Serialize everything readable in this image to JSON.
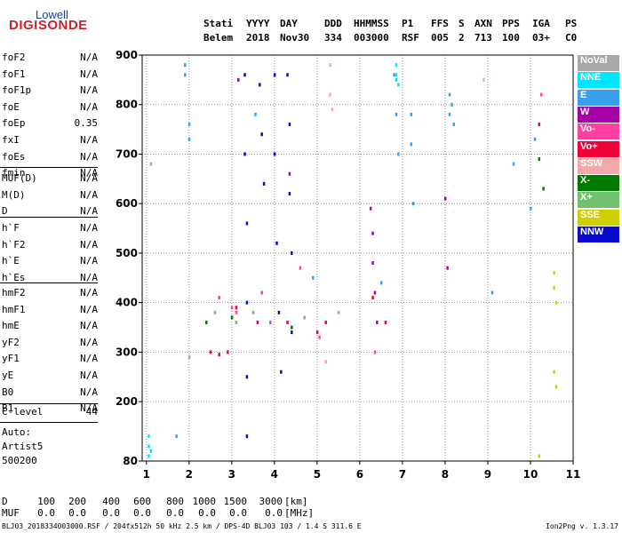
{
  "logo": {
    "top": "Lowell",
    "bottom": "DIGISONDE"
  },
  "header": {
    "labels": [
      "Stati",
      "YYYY",
      "DAY",
      "DDD",
      "HHMMSS",
      "P1",
      "FFS",
      "S",
      "AXN",
      "PPS",
      "IGA",
      "PS"
    ],
    "values": [
      "Belem",
      "2018",
      "Nov30",
      "334",
      "003000",
      "RSF",
      "005",
      "2",
      "713",
      "100",
      "03+",
      "C0"
    ]
  },
  "params": {
    "group1": [
      {
        "name": "foF2",
        "value": "N/A"
      },
      {
        "name": "foF1",
        "value": "N/A"
      },
      {
        "name": "foF1p",
        "value": "N/A"
      },
      {
        "name": "foE",
        "value": "N/A"
      },
      {
        "name": "foEp",
        "value": "0.35"
      },
      {
        "name": "fxI",
        "value": "N/A"
      },
      {
        "name": "foEs",
        "value": "N/A"
      },
      {
        "name": "fmin",
        "value": "N/A"
      }
    ],
    "group2": [
      {
        "name": "MUF(D)",
        "value": "N/A"
      },
      {
        "name": "M(D)",
        "value": "N/A"
      },
      {
        "name": "D",
        "value": "N/A"
      }
    ],
    "group3": [
      {
        "name": "h`F",
        "value": "N/A"
      },
      {
        "name": "h`F2",
        "value": "N/A"
      },
      {
        "name": "h`E",
        "value": "N/A"
      },
      {
        "name": "h`Es",
        "value": "N/A"
      }
    ],
    "group4": [
      {
        "name": "hmF2",
        "value": "N/A"
      },
      {
        "name": "hmF1",
        "value": "N/A"
      },
      {
        "name": "hmE",
        "value": "N/A"
      },
      {
        "name": "yF2",
        "value": "N/A"
      },
      {
        "name": "yF1",
        "value": "N/A"
      },
      {
        "name": "yE",
        "value": "N/A"
      },
      {
        "name": "B0",
        "value": "N/A"
      },
      {
        "name": "B1",
        "value": "N/A"
      }
    ],
    "clevel": {
      "name": "C-level",
      "value": "44"
    },
    "auto": [
      "Auto:",
      "Artist5",
      "500200"
    ]
  },
  "legend": [
    {
      "label": "NoVal",
      "color": "#a8a8a8"
    },
    {
      "label": "NNE",
      "color": "#00e6ff"
    },
    {
      "label": "E",
      "color": "#3aa0ee"
    },
    {
      "label": "W",
      "color": "#a800a8"
    },
    {
      "label": "Vo-",
      "color": "#ff40a0"
    },
    {
      "label": "Vo+",
      "color": "#ee0038"
    },
    {
      "label": "SSW",
      "color": "#f4a8a8"
    },
    {
      "label": "X-",
      "color": "#007a00"
    },
    {
      "label": "X+",
      "color": "#70c070"
    },
    {
      "label": "SSE",
      "color": "#d0d000"
    },
    {
      "label": "NNW",
      "color": "#0a0acc"
    }
  ],
  "bottom_table": {
    "row1_label": "D",
    "row1_values": [
      "100",
      "200",
      "400",
      "600",
      "800",
      "1000",
      "1500",
      "3000"
    ],
    "row1_unit": "[km]",
    "row2_label": "MUF",
    "row2_values": [
      "0.0",
      "0.0",
      "0.0",
      "0.0",
      "0.0",
      "0.0",
      "0.0",
      "0.0"
    ],
    "row2_unit": "[MHz]"
  },
  "footer": {
    "left": "BLJ03_2018334003000.RSF / 204fx512h 50 kHz 2.5 km / DPS-4D BLJ03 103 / 1.4 S 311.6 E",
    "right": "Ion2Png v. 1.3.17"
  },
  "chart_data": {
    "type": "scatter",
    "title": "",
    "xlabel": "",
    "ylabel": "",
    "xlim": [
      0.9,
      11.0
    ],
    "ylim": [
      80,
      900
    ],
    "x_ticks": [
      "1",
      "2",
      "3",
      "4",
      "5",
      "6",
      "7",
      "8",
      "9",
      "10",
      "11"
    ],
    "y_ticks": [
      "80",
      "200",
      "300",
      "400",
      "500",
      "600",
      "700",
      "800",
      "900"
    ],
    "grid": "dotted",
    "legend_position": "right",
    "series": [
      {
        "name": "NNE",
        "x": [
          1.05,
          1.05,
          1.05,
          1.1,
          6.85,
          6.85,
          6.85,
          6.9
        ],
        "y": [
          90,
          110,
          130,
          100,
          880,
          860,
          850,
          840
        ]
      },
      {
        "name": "E",
        "x": [
          1.9,
          1.9,
          2.0,
          2.0,
          3.55,
          6.8,
          6.85,
          6.9,
          7.2,
          7.2,
          7.25,
          8.1,
          8.1,
          8.15,
          8.2,
          9.1,
          9.6,
          10.0,
          10.1,
          1.7,
          4.9,
          6.5
        ],
        "y": [
          880,
          860,
          760,
          730,
          780,
          860,
          780,
          700,
          780,
          720,
          600,
          820,
          780,
          800,
          760,
          420,
          680,
          590,
          730,
          130,
          450,
          440
        ]
      },
      {
        "name": "W",
        "x": [
          3.15,
          4.35,
          6.25,
          6.3,
          6.3,
          6.35,
          6.4,
          8.0,
          8.05
        ],
        "y": [
          850,
          660,
          590,
          540,
          480,
          420,
          360,
          610,
          470
        ]
      },
      {
        "name": "NNW",
        "x": [
          3.3,
          3.3,
          3.35,
          3.35,
          3.35,
          3.35,
          3.65,
          3.7,
          3.75,
          4.0,
          4.0,
          4.05,
          4.1,
          4.15,
          4.3,
          4.35,
          4.35,
          4.4,
          4.4
        ],
        "y": [
          860,
          700,
          560,
          400,
          250,
          130,
          840,
          740,
          640,
          860,
          700,
          520,
          380,
          260,
          860,
          760,
          620,
          500,
          340
        ]
      },
      {
        "name": "Vo-",
        "x": [
          2.7,
          3.0,
          3.1,
          3.7,
          3.9,
          4.6,
          5.05,
          6.35,
          10.25
        ],
        "y": [
          410,
          390,
          380,
          420,
          360,
          470,
          330,
          300,
          820
        ]
      },
      {
        "name": "Vo+",
        "x": [
          2.5,
          2.7,
          2.9,
          3.1,
          3.6,
          4.3,
          5.0,
          5.2,
          6.3,
          6.6,
          10.2
        ],
        "y": [
          300,
          295,
          300,
          390,
          360,
          360,
          340,
          360,
          410,
          360,
          760
        ]
      },
      {
        "name": "SSW",
        "x": [
          5.3,
          5.3,
          5.35,
          5.2,
          8.9
        ],
        "y": [
          880,
          820,
          790,
          280,
          850
        ]
      },
      {
        "name": "X-",
        "x": [
          2.4,
          3.0,
          4.4,
          10.2,
          10.3
        ],
        "y": [
          360,
          370,
          350,
          690,
          630
        ]
      },
      {
        "name": "X+",
        "x": [
          2.6,
          3.1,
          3.5,
          4.7
        ],
        "y": [
          380,
          360,
          380,
          370
        ]
      },
      {
        "name": "SSE",
        "x": [
          10.55,
          10.55,
          10.6,
          10.55,
          10.6,
          10.2
        ],
        "y": [
          460,
          430,
          400,
          260,
          230,
          90
        ]
      },
      {
        "name": "NoVal",
        "x": [
          1.1,
          2.0,
          5.5
        ],
        "y": [
          680,
          290,
          380
        ]
      }
    ]
  }
}
